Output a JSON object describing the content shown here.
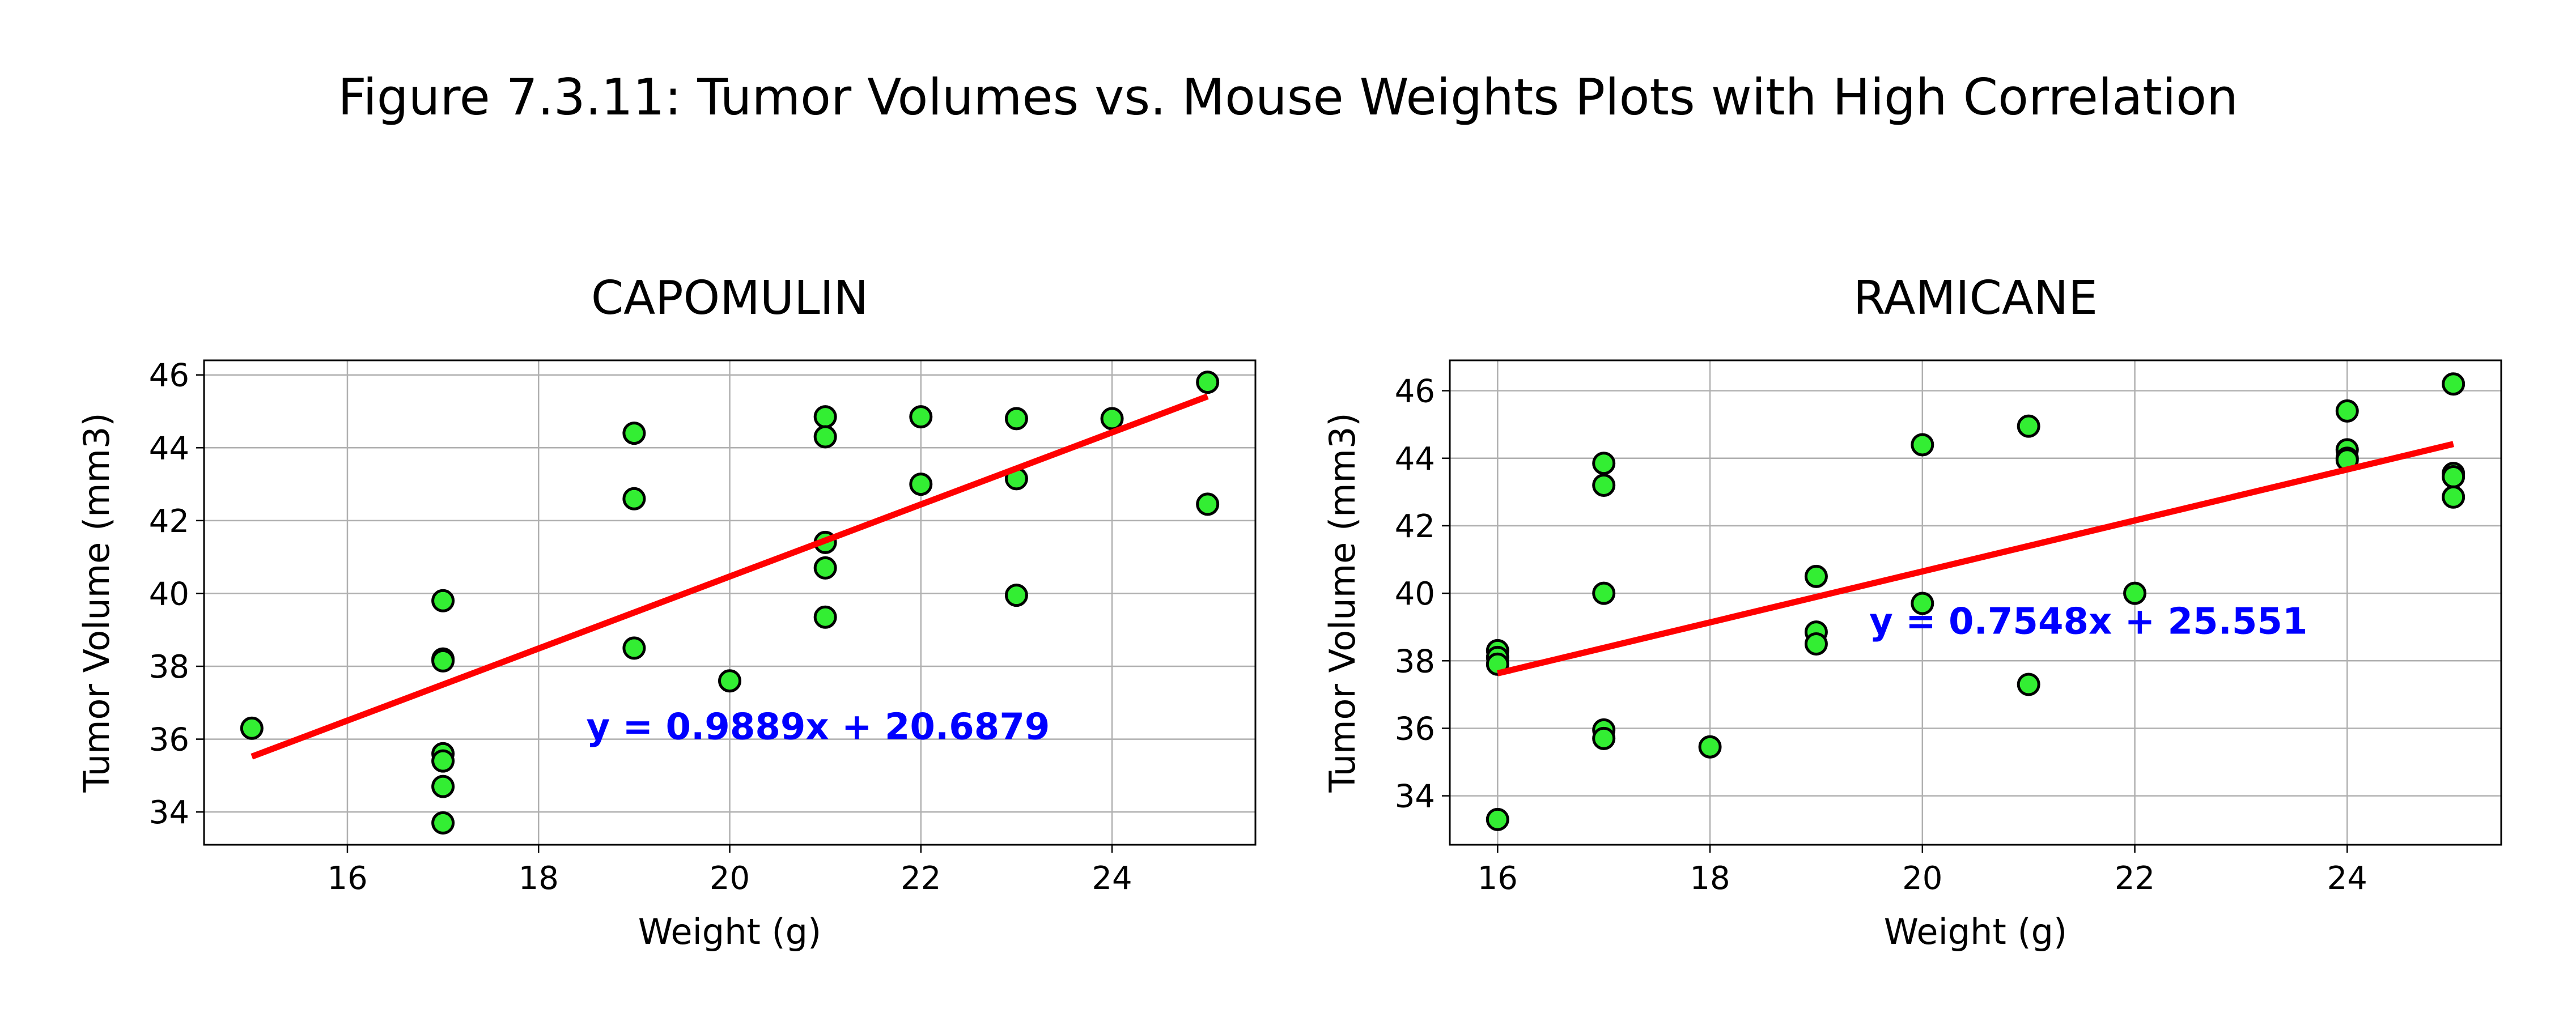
{
  "figure": {
    "title": "Figure 7.3.11: Tumor Volumes vs. Mouse Weights Plots with High Correlation"
  },
  "colors": {
    "marker_fill": "#33ee33",
    "marker_edge": "#000000",
    "regression_line": "#ff0000",
    "equation_text": "#0000ff",
    "grid": "#b0b0b0"
  },
  "chart_data": [
    {
      "type": "scatter",
      "title": "CAPOMULIN",
      "xlabel": "Weight (g)",
      "ylabel": "Tumor Volume (mm3)",
      "xlim": [
        14.5,
        25.5
      ],
      "ylim": [
        33.1,
        46.4
      ],
      "xticks": [
        16,
        18,
        20,
        22,
        24
      ],
      "yticks": [
        34,
        36,
        38,
        40,
        42,
        44,
        46
      ],
      "grid": true,
      "series": [
        {
          "x": [
            15,
            17,
            17,
            17,
            17,
            17,
            17,
            17,
            19,
            19,
            19,
            20,
            21,
            21,
            21,
            21,
            21,
            22,
            22,
            23,
            23,
            23,
            24,
            25,
            25
          ],
          "y": [
            36.3,
            39.8,
            38.2,
            38.15,
            35.6,
            35.4,
            34.7,
            33.7,
            44.4,
            42.6,
            38.5,
            37.6,
            44.85,
            44.3,
            41.4,
            40.7,
            39.35,
            44.85,
            43.0,
            44.8,
            43.15,
            39.95,
            44.8,
            45.8,
            42.45
          ]
        }
      ],
      "regression": {
        "slope": 0.9889,
        "intercept": 20.6879,
        "x_range": [
          15,
          25
        ]
      },
      "equation": "y = 0.9889x + 20.6879",
      "equation_pos": [
        18.5,
        36.0
      ]
    },
    {
      "type": "scatter",
      "title": "RAMICANE",
      "xlabel": "Weight (g)",
      "ylabel": "Tumor Volume (mm3)",
      "xlim": [
        15.55,
        25.45
      ],
      "ylim": [
        32.55,
        46.9
      ],
      "xticks": [
        16,
        18,
        20,
        22,
        24
      ],
      "yticks": [
        34,
        36,
        38,
        40,
        42,
        44,
        46
      ],
      "grid": true,
      "series": [
        {
          "x": [
            16,
            16,
            16,
            16,
            17,
            17,
            17,
            17,
            17,
            18,
            19,
            19,
            19,
            20,
            20,
            21,
            21,
            22,
            24,
            24,
            24,
            24,
            25,
            25,
            25,
            25
          ],
          "y": [
            38.3,
            38.1,
            37.9,
            33.3,
            43.85,
            43.2,
            40.0,
            35.95,
            35.7,
            35.45,
            40.5,
            38.85,
            38.5,
            44.4,
            39.7,
            44.95,
            37.3,
            40.0,
            45.4,
            44.25,
            44.0,
            43.95,
            46.2,
            43.55,
            43.45,
            42.85
          ]
        }
      ],
      "regression": {
        "slope": 0.7548,
        "intercept": 25.551,
        "x_range": [
          16,
          25
        ]
      },
      "equation": "y = 0.7548x + 25.551",
      "equation_pos": [
        19.5,
        38.8
      ]
    }
  ]
}
